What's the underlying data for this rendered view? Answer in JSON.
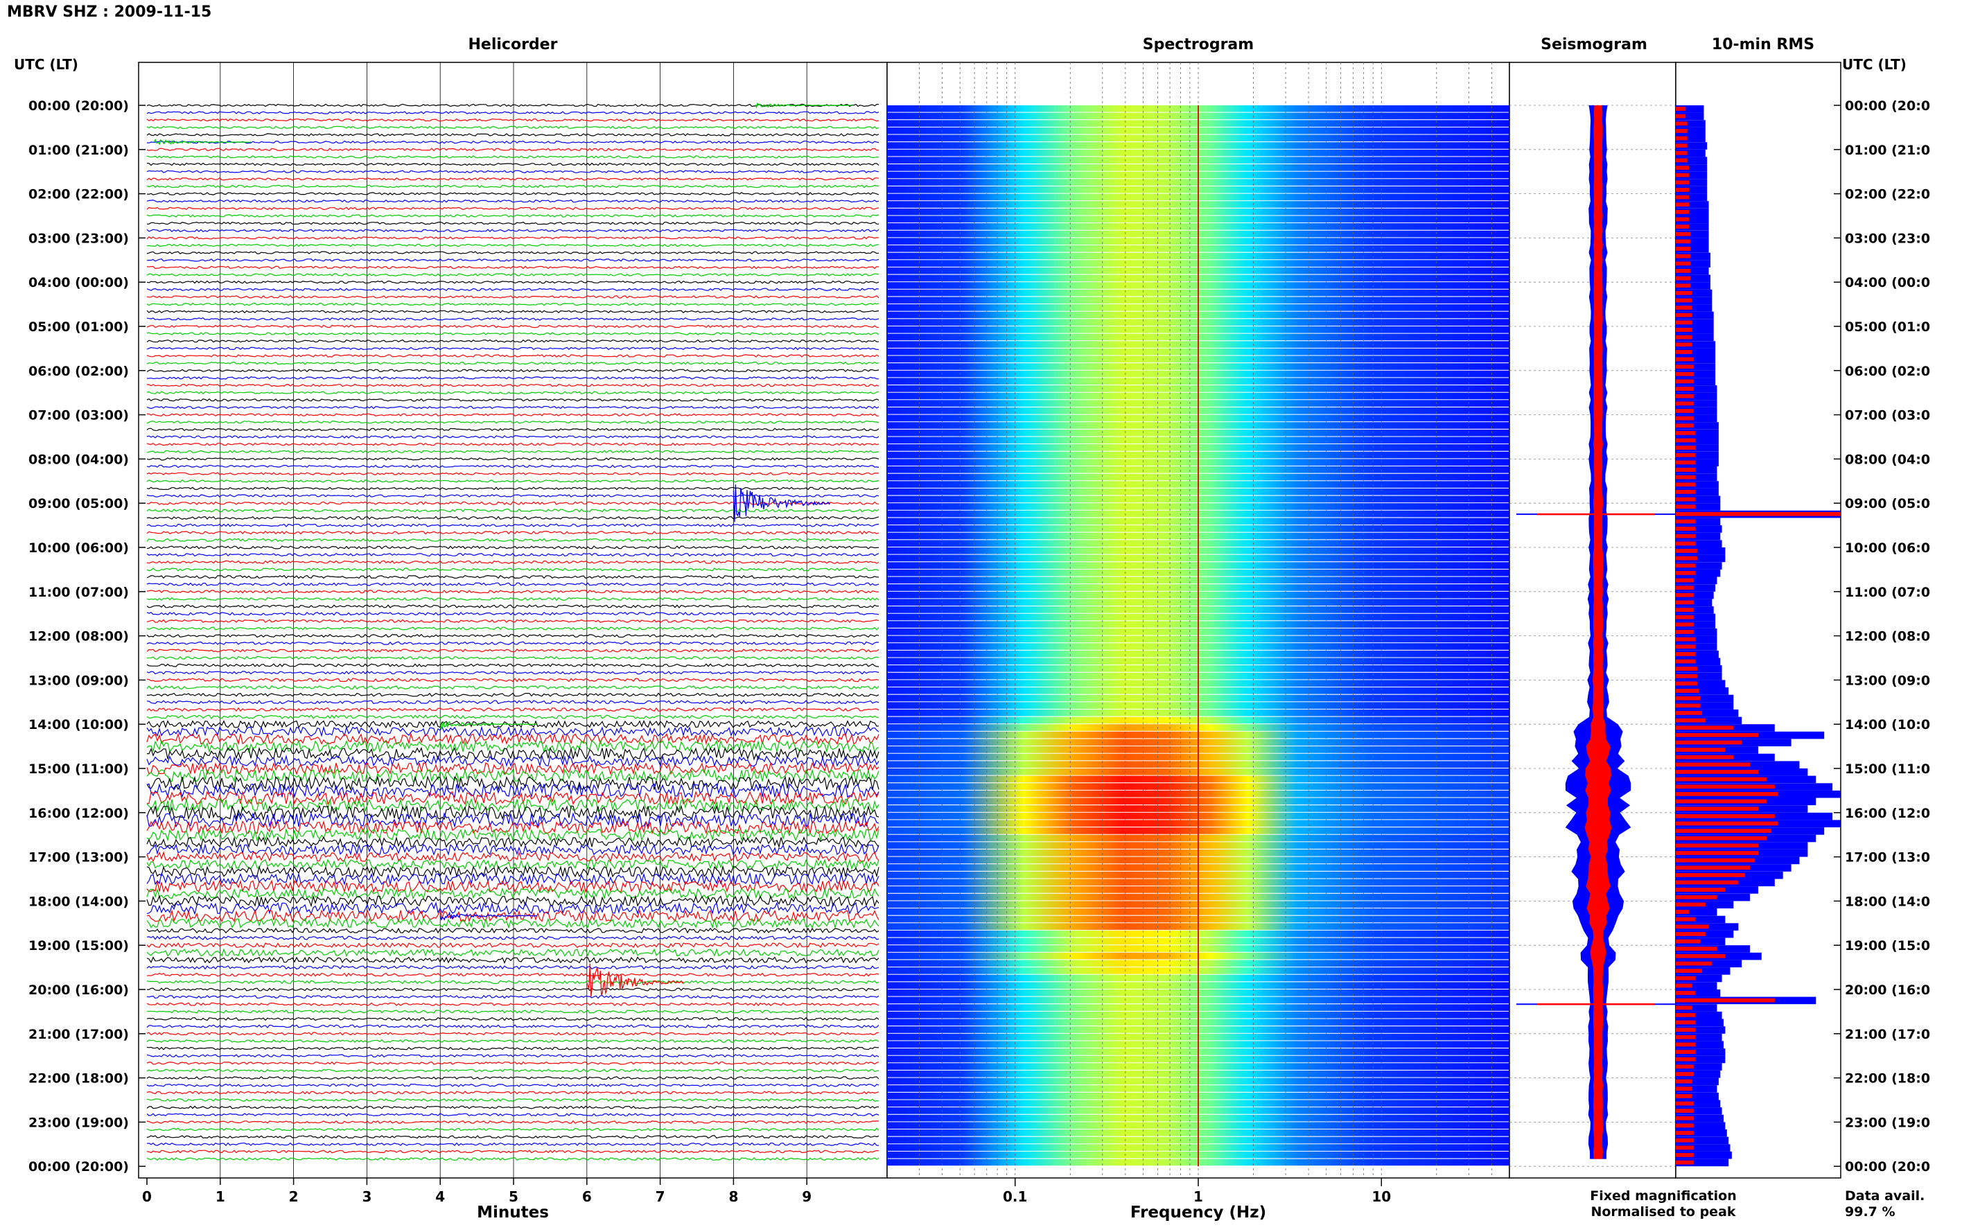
{
  "figure": {
    "title": "MBRV SHZ : 2009-11-15",
    "utc_label": "UTC (LT)",
    "utc_label_right": "UTC (LT)"
  },
  "panels": {
    "helicorder": "Helicorder",
    "spectrogram": "Spectrogram",
    "seismogram": "Seismogram",
    "rms": "10-min RMS"
  },
  "time_labels": [
    "00:00 (20:00)",
    "01:00 (21:00)",
    "02:00 (22:00)",
    "03:00 (23:00)",
    "04:00 (00:00)",
    "05:00 (01:00)",
    "06:00 (02:00)",
    "07:00 (03:00)",
    "08:00 (04:00)",
    "09:00 (05:00)",
    "10:00 (06:00)",
    "11:00 (07:00)",
    "12:00 (08:00)",
    "13:00 (09:00)",
    "14:00 (10:00)",
    "15:00 (11:00)",
    "16:00 (12:00)",
    "17:00 (13:00)",
    "18:00 (14:00)",
    "19:00 (15:00)",
    "20:00 (16:00)",
    "21:00 (17:00)",
    "22:00 (18:00)",
    "23:00 (19:00)",
    "00:00 (20:00)"
  ],
  "time_labels_right": [
    "00:00 (20:0",
    "01:00 (21:0",
    "02:00 (22:0",
    "03:00 (23:0",
    "04:00 (00:0",
    "05:00 (01:0",
    "06:00 (02:0",
    "07:00 (03:0",
    "08:00 (04:0",
    "09:00 (05:0",
    "10:00 (06:0",
    "11:00 (07:0",
    "12:00 (08:0",
    "13:00 (09:0",
    "14:00 (10:0",
    "15:00 (11:0",
    "16:00 (12:0",
    "17:00 (13:0",
    "18:00 (14:0",
    "19:00 (15:0",
    "20:00 (16:0",
    "21:00 (17:0",
    "22:00 (18:0",
    "23:00 (19:0",
    "00:00 (20:0"
  ],
  "legend": {
    "fixed": "Fixed magnification",
    "normalised": "Normalised to peak",
    "fixed_color": "#0000ff",
    "normalised_color": "#ff0000"
  },
  "availability": {
    "label": "Data avail.",
    "value": "99.7 %"
  },
  "chart_data": [
    {
      "type": "line",
      "panel": "Helicorder",
      "xlabel": "Minutes",
      "x_ticks": [
        "0",
        "1",
        "2",
        "3",
        "4",
        "5",
        "6",
        "7",
        "8",
        "9"
      ],
      "xlim": [
        0,
        10
      ],
      "ylabel": "UTC (LT)",
      "traces_per_hour": 6,
      "trace_colors": [
        "#000000",
        "#0000ff",
        "#ff0000",
        "#00cc00"
      ],
      "trace_amplitude": [
        1,
        1,
        1,
        1,
        1,
        1,
        1,
        1,
        1,
        1,
        1,
        1,
        1,
        1,
        1,
        1,
        1,
        1,
        1,
        1,
        1,
        1,
        1,
        1,
        1,
        1,
        1,
        1,
        1,
        1,
        1,
        1,
        1,
        1,
        1,
        1,
        1,
        1,
        1,
        1,
        1,
        1,
        1,
        1,
        1,
        1,
        1,
        1,
        1,
        1,
        1,
        1,
        1,
        1,
        1.2,
        1.2,
        1.2,
        1.2,
        1.2,
        1.2,
        1.2,
        1.2,
        1.2,
        1.2,
        1.2,
        1.2,
        1.2,
        1.2,
        1.2,
        1.2,
        1.2,
        1.2,
        1.2,
        1.2,
        1.2,
        1.2,
        1.2,
        1.2,
        1.4,
        1.4,
        1.4,
        1.4,
        1.4,
        1.5,
        3,
        4,
        4.5,
        5,
        5,
        4.5,
        5,
        5.5,
        6,
        6,
        5.5,
        5.5,
        6,
        6,
        5.5,
        5,
        4.5,
        4.5,
        4,
        4,
        4.5,
        5,
        5,
        4.5,
        4.5,
        5,
        5,
        4,
        2,
        1.5,
        2,
        3,
        2.5,
        1.5,
        1.3,
        1.3,
        1.2,
        1.2,
        1.2,
        1.2,
        1.2,
        1.2,
        1.1,
        1.1,
        1.1,
        1.1,
        1.1,
        1.1,
        1.1,
        1.1,
        1.1,
        1.1,
        1.1,
        1.1,
        1.1,
        1.1,
        1.1,
        1.1,
        1.1,
        1.1
      ],
      "events": [
        {
          "time": "00:00",
          "minute": 8.3,
          "amplitude": 1.5
        },
        {
          "time": "00:50",
          "minute": 0.1,
          "amplitude": 2
        },
        {
          "time": "09:00",
          "minute": 8.0,
          "amplitude": 14
        },
        {
          "time": "14:00",
          "minute": 4.0,
          "amplitude": 3
        },
        {
          "time": "18:20",
          "minute": 4.0,
          "amplitude": 3
        },
        {
          "time": "19:50",
          "minute": 6.0,
          "amplitude": 14
        }
      ]
    },
    {
      "type": "heatmap",
      "panel": "Spectrogram",
      "xlabel": "Frequency (Hz)",
      "x_ticks": [
        "0.1",
        "1",
        "10"
      ],
      "x_scale": "log",
      "xlim": [
        0.02,
        50
      ],
      "y_range": "00:00 - 24:00 UTC",
      "colormap": "jet",
      "microseism_band_hz": [
        0.2,
        2
      ],
      "spectral_line_hz": 1,
      "rows_per_hour": 6,
      "relative_energy": [
        1,
        1,
        1,
        1,
        1,
        1,
        1,
        1,
        1,
        1,
        1,
        1,
        1,
        1,
        1,
        1,
        1,
        1,
        1,
        1,
        1,
        1,
        1,
        1,
        1,
        1,
        1,
        1,
        1,
        1,
        1,
        1,
        1,
        1,
        1,
        1,
        1,
        1,
        1,
        1,
        1,
        1,
        1,
        1,
        1,
        1,
        1,
        1,
        1,
        1,
        1,
        1,
        1,
        1,
        1.1,
        1.1,
        1.1,
        1.1,
        1.1,
        1.1,
        1.1,
        1.1,
        1.1,
        1.1,
        1.1,
        1.1,
        1.1,
        1.1,
        1.1,
        1.1,
        1.1,
        1.1,
        1.1,
        1.1,
        1.1,
        1.1,
        1.1,
        1.1,
        1.2,
        1.2,
        1.2,
        1.2,
        1.2,
        1.3,
        2,
        2.5,
        2.8,
        3,
        3,
        2.8,
        3,
        3.2,
        3.4,
        3.4,
        3.2,
        3.2,
        3.4,
        3.4,
        3.2,
        3,
        2.8,
        2.8,
        2.6,
        2.6,
        2.8,
        3,
        3,
        2.8,
        2.8,
        3,
        3,
        2.6,
        1.6,
        1.3,
        1.6,
        2,
        1.8,
        1.3,
        1.2,
        1.2,
        1.1,
        1.1,
        1.1,
        1.1,
        1.1,
        1.1,
        1,
        1,
        1,
        1,
        1,
        1,
        1,
        1,
        1,
        1,
        1,
        1,
        1,
        1,
        1,
        1,
        1,
        1
      ]
    },
    {
      "type": "line",
      "panel": "Seismogram",
      "series": [
        {
          "name": "Fixed magnification",
          "color": "#0000ff"
        },
        {
          "name": "Normalised to peak",
          "color": "#ff0000"
        }
      ],
      "y_range": "00:00 - 24:00 UTC",
      "spikes_utc": [
        "09:15",
        "20:20"
      ]
    },
    {
      "type": "bar",
      "panel": "10-min RMS",
      "orientation": "horizontal",
      "bins_per_hour": 6,
      "series": [
        {
          "name": "Fixed magnification",
          "color": "#0000ff",
          "values": [
            0.17,
            0.17,
            0.18,
            0.18,
            0.18,
            0.19,
            0.18,
            0.19,
            0.19,
            0.19,
            0.19,
            0.19,
            0.19,
            0.2,
            0.2,
            0.2,
            0.2,
            0.2,
            0.2,
            0.2,
            0.21,
            0.21,
            0.2,
            0.21,
            0.21,
            0.22,
            0.22,
            0.22,
            0.23,
            0.23,
            0.23,
            0.23,
            0.24,
            0.24,
            0.24,
            0.24,
            0.24,
            0.24,
            0.25,
            0.25,
            0.25,
            0.25,
            0.25,
            0.26,
            0.26,
            0.26,
            0.26,
            0.26,
            0.26,
            0.25,
            0.25,
            0.26,
            0.26,
            0.27,
            0.27,
            1.0,
            0.27,
            0.28,
            0.27,
            0.28,
            0.3,
            0.3,
            0.28,
            0.27,
            0.25,
            0.24,
            0.23,
            0.22,
            0.23,
            0.24,
            0.24,
            0.25,
            0.25,
            0.25,
            0.26,
            0.27,
            0.28,
            0.28,
            0.3,
            0.32,
            0.35,
            0.35,
            0.38,
            0.4,
            0.6,
            0.9,
            0.7,
            0.5,
            0.6,
            0.75,
            0.8,
            0.85,
            0.95,
            1.0,
            0.85,
            0.8,
            0.95,
            1.0,
            0.9,
            0.85,
            0.8,
            0.8,
            0.75,
            0.7,
            0.65,
            0.6,
            0.5,
            0.45,
            0.35,
            0.25,
            0.3,
            0.38,
            0.35,
            0.3,
            0.45,
            0.52,
            0.4,
            0.33,
            0.28,
            0.25,
            0.27,
            0.85,
            0.25,
            0.28,
            0.29,
            0.3,
            0.28,
            0.29,
            0.3,
            0.3,
            0.28,
            0.27,
            0.26,
            0.25,
            0.26,
            0.27,
            0.28,
            0.29,
            0.3,
            0.31,
            0.32,
            0.33,
            0.34,
            0.32
          ]
        },
        {
          "name": "Normalised to peak",
          "color": "#ff0000",
          "values": [
            0.06,
            0.06,
            0.07,
            0.07,
            0.07,
            0.07,
            0.07,
            0.07,
            0.08,
            0.08,
            0.08,
            0.08,
            0.08,
            0.08,
            0.08,
            0.08,
            0.08,
            0.09,
            0.09,
            0.09,
            0.09,
            0.09,
            0.09,
            0.09,
            0.09,
            0.1,
            0.1,
            0.1,
            0.1,
            0.1,
            0.1,
            0.1,
            0.1,
            0.1,
            0.11,
            0.11,
            0.11,
            0.11,
            0.11,
            0.11,
            0.11,
            0.11,
            0.11,
            0.11,
            0.12,
            0.12,
            0.12,
            0.12,
            0.12,
            0.12,
            0.12,
            0.12,
            0.12,
            0.12,
            0.12,
            1.0,
            0.12,
            0.12,
            0.12,
            0.12,
            0.13,
            0.13,
            0.12,
            0.12,
            0.11,
            0.11,
            0.11,
            0.11,
            0.11,
            0.11,
            0.11,
            0.11,
            0.12,
            0.12,
            0.12,
            0.12,
            0.13,
            0.13,
            0.13,
            0.14,
            0.15,
            0.15,
            0.16,
            0.18,
            0.35,
            0.5,
            0.4,
            0.3,
            0.35,
            0.45,
            0.5,
            0.55,
            0.6,
            0.62,
            0.55,
            0.5,
            0.6,
            0.62,
            0.58,
            0.55,
            0.5,
            0.5,
            0.48,
            0.45,
            0.42,
            0.38,
            0.3,
            0.25,
            0.18,
            0.08,
            0.12,
            0.2,
            0.18,
            0.15,
            0.25,
            0.3,
            0.22,
            0.16,
            0.12,
            0.1,
            0.12,
            0.6,
            0.1,
            0.12,
            0.12,
            0.12,
            0.12,
            0.12,
            0.12,
            0.12,
            0.11,
            0.11,
            0.1,
            0.1,
            0.1,
            0.11,
            0.11,
            0.11,
            0.11,
            0.11,
            0.11,
            0.11,
            0.11,
            0.11
          ]
        }
      ]
    }
  ]
}
